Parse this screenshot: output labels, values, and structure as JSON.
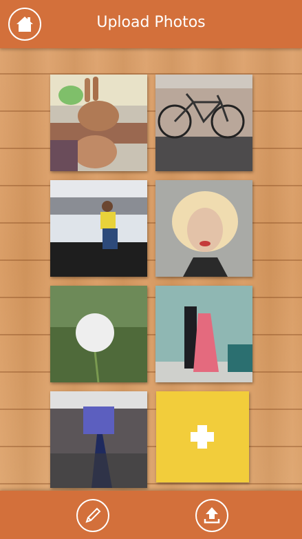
{
  "header": {
    "title": "Upload Photos"
  }
}
